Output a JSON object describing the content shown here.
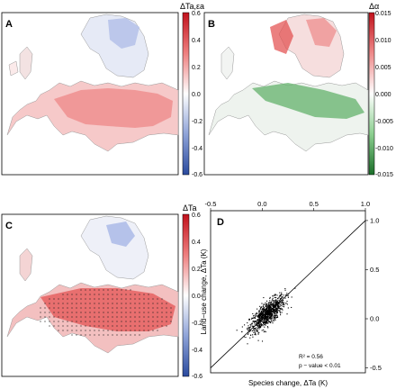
{
  "panels": {
    "a": {
      "letter": "A",
      "colorbar_title": "ΔTa,εa",
      "colorbar_ticks": [
        "0.6",
        "0.4",
        "0.2",
        "0.0",
        "-0.2",
        "-0.4",
        "-0.6"
      ]
    },
    "b": {
      "letter": "B",
      "colorbar_title": "Δα",
      "colorbar_ticks": [
        "0.015",
        "0.010",
        "0.005",
        "0.000",
        "-0.005",
        "-0.010",
        "-0.015"
      ]
    },
    "c": {
      "letter": "C",
      "colorbar_title": "ΔTa",
      "colorbar_ticks": [
        "0.6",
        "0.4",
        "0.2",
        "0.0",
        "-0.2",
        "-0.4",
        "-0.6"
      ]
    },
    "d": {
      "letter": "D"
    }
  },
  "colors": {
    "positive_red": "#d7191c",
    "negative_blue": "#2c4ea0",
    "alpha_negative_green": "#1a7a2a",
    "neutral": "#ffffff"
  },
  "chart_data": {
    "type": "scatter",
    "xlabel": "Species change, ΔTa (K)",
    "ylabel": "Land−use change, ΔTa (K)",
    "xlim": [
      -0.5,
      1.0
    ],
    "ylim": [
      -0.55,
      1.1
    ],
    "x_ticks": [
      "-0.5",
      "0.0",
      "0.5",
      "1.0"
    ],
    "y_ticks": [
      "1.0",
      "0.5",
      "0.0",
      "-0.5"
    ],
    "x_tick_values": [
      -0.5,
      0.0,
      0.5,
      1.0
    ],
    "y_tick_values": [
      1.0,
      0.5,
      0.0,
      -0.5
    ],
    "reference_line": "1:1",
    "point_cloud": {
      "center": [
        0.05,
        0.05
      ],
      "sd": [
        0.085,
        0.09
      ],
      "correlation": 0.75,
      "count": 900
    },
    "annotations": {
      "r2": "R² = 0.56",
      "p": "p − value < 0.01"
    }
  }
}
